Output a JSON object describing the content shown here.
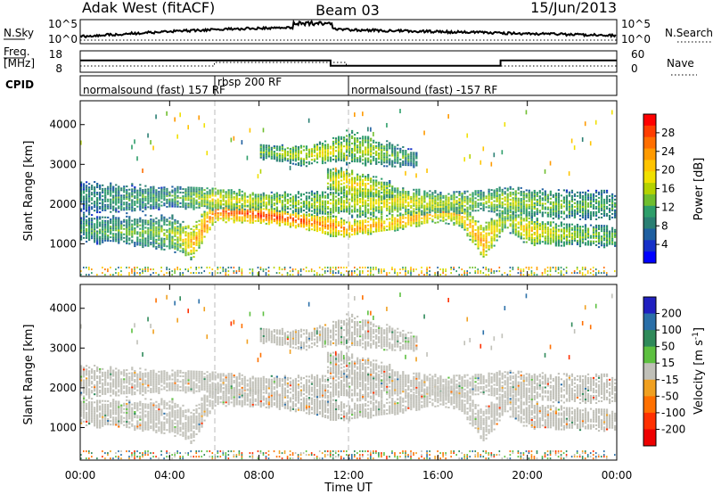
{
  "header": {
    "station": "Adak West (fitACF)",
    "beam": "Beam 03",
    "date": "15/Jun/2013"
  },
  "top_panel": {
    "left_label": "N.Sky",
    "left_ticks": [
      "10^5",
      "10^0"
    ],
    "right_ticks": [
      "10^5",
      "10^0"
    ],
    "right_label": "N.Search"
  },
  "freq_panel": {
    "left_label_1": "Freq.",
    "left_label_2": "[MHz]",
    "left_ticks": [
      "18",
      "8"
    ],
    "right_ticks": [
      "60",
      "0"
    ],
    "right_label": "Nave",
    "cpid_label": "CPID",
    "cpid_segments": [
      "normalsound (fast) 157 RF",
      "rbsp 200 RF",
      "normalsound (fast) -157 RF"
    ]
  },
  "power_colorbar": {
    "label": "Power [dB]",
    "ticks": [
      "28",
      "24",
      "20",
      "16",
      "12",
      "8",
      "4"
    ],
    "colors": [
      "#ff0000",
      "#ff3d00",
      "#ff6e00",
      "#ff9a00",
      "#ffc400",
      "#f0e000",
      "#b4d200",
      "#6fbe2e",
      "#2e9e6a",
      "#2a7f73",
      "#1f5fa0",
      "#1530c8",
      "#0000ff"
    ]
  },
  "velocity_colorbar": {
    "label_main": "Velocity [m s",
    "label_sup": "-1",
    "label_end": "]",
    "ticks": [
      "200",
      "100",
      "50",
      "15",
      "-15",
      "-50",
      "-100",
      "-200"
    ],
    "colors": [
      "#2020c0",
      "#2a6fa8",
      "#2f8a5a",
      "#5dc040",
      "#c0c0b8",
      "#f0a020",
      "#ff7000",
      "#ff3000",
      "#ee0000"
    ]
  },
  "chart_data": {
    "type": "heatmap",
    "title": "Adak West (fitACF)",
    "xlabel": "Time UT",
    "ylabel": "Slant Range [km]",
    "xlim": [
      0,
      24
    ],
    "x_ticks": [
      "00:00",
      "04:00",
      "08:00",
      "12:00",
      "16:00",
      "20:00",
      "00:00"
    ],
    "y_ticks": [
      "1000",
      "2000",
      "3000",
      "4000"
    ],
    "ylim": [
      180,
      4600
    ],
    "echo_bands": [
      {
        "t": [
          0,
          2,
          4,
          5,
          6,
          8,
          10,
          11,
          12,
          14,
          16,
          17,
          18,
          19,
          20,
          22,
          24
        ],
        "center": [
          1350,
          1300,
          1250,
          1000,
          1800,
          1700,
          1550,
          1450,
          1350,
          1500,
          1800,
          1700,
          1000,
          1600,
          1300,
          1200,
          1150
        ],
        "width": [
          250,
          250,
          300,
          300,
          200,
          150,
          150,
          200,
          150,
          150,
          200,
          200,
          300,
          200,
          250,
          200,
          200
        ],
        "power": [
          10,
          12,
          14,
          22,
          26,
          28,
          26,
          24,
          24,
          22,
          22,
          20,
          24,
          14,
          20,
          14,
          12
        ]
      },
      {
        "t": [
          0,
          2,
          4,
          6,
          8,
          10,
          12,
          14,
          16,
          18,
          19,
          20,
          22,
          24
        ],
        "center": [
          2150,
          2100,
          2150,
          2100,
          2050,
          2000,
          2000,
          2050,
          2000,
          2050,
          2050,
          2000,
          1950,
          1950
        ],
        "width": [
          300,
          250,
          200,
          200,
          150,
          200,
          250,
          250,
          200,
          200,
          250,
          250,
          250,
          250
        ],
        "power": [
          8,
          10,
          10,
          18,
          16,
          14,
          16,
          18,
          16,
          14,
          16,
          14,
          12,
          10
        ]
      },
      {
        "t": [
          8,
          9,
          10,
          11,
          12,
          13,
          14,
          15
        ],
        "center": [
          3300,
          3250,
          3200,
          3300,
          3400,
          3300,
          3200,
          3100
        ],
        "width": [
          150,
          150,
          200,
          200,
          300,
          250,
          200,
          150
        ],
        "power": [
          12,
          14,
          16,
          18,
          14,
          16,
          12,
          10
        ]
      },
      {
        "t": [
          11,
          12,
          13,
          14
        ],
        "center": [
          2600,
          2500,
          2400,
          2300
        ],
        "width": [
          200,
          250,
          200,
          150
        ],
        "power": [
          16,
          20,
          18,
          14
        ]
      }
    ],
    "power_range": [
      0,
      30
    ],
    "velocity_range": [
      -250,
      250
    ],
    "n_sky_range": [
      "10^0",
      "10^5"
    ],
    "freq_range_mhz": [
      8,
      18
    ],
    "nave_range": [
      0,
      60
    ],
    "freq_steps": [
      {
        "t0": 0,
        "t1": 11.2,
        "value": 13.5
      },
      {
        "t0": 11.2,
        "t1": 18.8,
        "value": 11.0
      },
      {
        "t0": 18.8,
        "t1": 24,
        "value": 13.5
      }
    ],
    "cpid_boundaries": [
      6,
      12
    ]
  }
}
